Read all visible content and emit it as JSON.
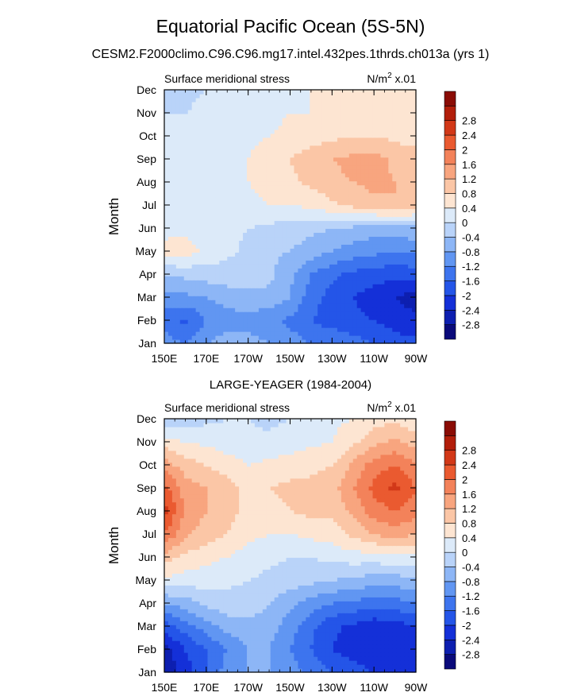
{
  "title": "Equatorial Pacific Ocean (5S-5N)",
  "subtitle": "CESM2.F2000climo.C96.C96.mg17.intel.432pes.1thrds.ch013a (yrs 1)",
  "colors": [
    "#0a0a7a",
    "#0d1fb0",
    "#1430d8",
    "#2455e8",
    "#3d74ee",
    "#6196f2",
    "#8db6f6",
    "#b9d3f9",
    "#dceaf9",
    "#fde5d2",
    "#fbc6a6",
    "#f8a57f",
    "#f3825a",
    "#ea5a30",
    "#d23818",
    "#b21e0a",
    "#8a0c05"
  ],
  "chart_data": [
    {
      "type": "heatmap",
      "panel_title": "",
      "left_label": "Surface meridional stress",
      "right_label_base": "N/m",
      "right_label_sup": "2",
      "right_label_tail": " x.01",
      "ylabel": "Month",
      "x_ticks": [
        "150E",
        "170E",
        "170W",
        "150W",
        "130W",
        "110W",
        "90W"
      ],
      "y_ticks": [
        "Jan",
        "Feb",
        "Mar",
        "Apr",
        "May",
        "Jun",
        "Jul",
        "Aug",
        "Sep",
        "Oct",
        "Nov",
        "Dec"
      ],
      "colorbar_labels": [
        "-2.8",
        "-2.4",
        "-2",
        "-1.6",
        "-1.2",
        "-0.8",
        "-0.4",
        "0",
        "0.4",
        "0.8",
        "1.2",
        "1.6",
        "2",
        "2.4",
        "2.8"
      ],
      "levels": [
        -2.8,
        -2.4,
        -2,
        -1.6,
        -1.2,
        -0.8,
        -0.4,
        0,
        0.4,
        0.8,
        1.2,
        1.6,
        2,
        2.4,
        2.8
      ],
      "lon_labels_deg": [
        150,
        170,
        190,
        210,
        230,
        250,
        270
      ],
      "values": [
        [
          -1.0,
          -1.2,
          -0.8,
          -0.6,
          -0.6,
          -0.8,
          -1.0,
          -1.2,
          -1.2,
          -1.4,
          -1.6,
          -1.8,
          -1.9
        ],
        [
          -1.4,
          -1.7,
          -1.2,
          -1.0,
          -1.0,
          -1.1,
          -1.3,
          -1.6,
          -1.8,
          -1.9,
          -2.0,
          -2.2,
          -2.3
        ],
        [
          -1.0,
          -0.9,
          -0.8,
          -0.6,
          -0.5,
          -0.5,
          -0.8,
          -1.4,
          -1.8,
          -2.0,
          -2.2,
          -2.4,
          -2.6
        ],
        [
          -0.3,
          -0.3,
          -0.2,
          -0.2,
          -0.2,
          -0.3,
          -0.7,
          -1.2,
          -1.5,
          -1.7,
          -1.8,
          -1.9,
          -1.8
        ],
        [
          0.5,
          0.6,
          0.3,
          0.1,
          -0.1,
          -0.3,
          -0.4,
          -0.6,
          -0.8,
          -1.0,
          -1.1,
          -1.2,
          -1.1
        ],
        [
          0.3,
          0.3,
          0.2,
          0.1,
          0.0,
          -0.1,
          -0.2,
          -0.3,
          -0.4,
          -0.5,
          -0.6,
          -0.6,
          -0.5
        ],
        [
          0.3,
          0.3,
          0.3,
          0.3,
          0.3,
          0.4,
          0.4,
          0.5,
          0.7,
          0.9,
          1.1,
          1.2,
          1.0
        ],
        [
          0.2,
          0.2,
          0.3,
          0.3,
          0.4,
          0.5,
          0.7,
          0.9,
          1.1,
          1.2,
          1.3,
          1.2,
          1.0
        ],
        [
          0.2,
          0.2,
          0.3,
          0.3,
          0.4,
          0.6,
          0.8,
          1.0,
          1.2,
          1.3,
          1.4,
          1.1,
          1.0
        ],
        [
          0.2,
          0.2,
          0.2,
          0.3,
          0.3,
          0.4,
          0.5,
          0.6,
          0.7,
          0.8,
          0.8,
          0.7,
          0.6
        ],
        [
          0.0,
          0.0,
          0.1,
          0.2,
          0.2,
          0.3,
          0.4,
          0.4,
          0.5,
          0.5,
          0.6,
          0.5,
          0.5
        ],
        [
          -0.1,
          -0.1,
          0.0,
          0.1,
          0.2,
          0.3,
          0.3,
          0.4,
          0.4,
          0.5,
          0.6,
          0.7,
          0.6
        ]
      ]
    },
    {
      "type": "heatmap",
      "panel_title": "LARGE-YEAGER (1984-2004)",
      "left_label": "Surface meridional stress",
      "right_label_base": "N/m",
      "right_label_sup": "2",
      "right_label_tail": " x.01",
      "ylabel": "Month",
      "x_ticks": [
        "150E",
        "170E",
        "170W",
        "150W",
        "130W",
        "110W",
        "90W"
      ],
      "y_ticks": [
        "Jan",
        "Feb",
        "Mar",
        "Apr",
        "May",
        "Jun",
        "Jul",
        "Aug",
        "Sep",
        "Oct",
        "Nov",
        "Dec"
      ],
      "colorbar_labels": [
        "-2.8",
        "-2.4",
        "-2",
        "-1.6",
        "-1.2",
        "-0.8",
        "-0.4",
        "0",
        "0.4",
        "0.8",
        "1.2",
        "1.6",
        "2",
        "2.4",
        "2.8"
      ],
      "levels": [
        -2.8,
        -2.4,
        -2,
        -1.6,
        -1.2,
        -0.8,
        -0.4,
        0,
        0.4,
        0.8,
        1.2,
        1.6,
        2,
        2.4,
        2.8
      ],
      "lon_labels_deg": [
        150,
        170,
        190,
        210,
        230,
        250,
        270
      ],
      "values": [
        [
          -2.8,
          -2.2,
          -1.6,
          -1.0,
          -0.8,
          -0.8,
          -1.0,
          -1.3,
          -1.6,
          -1.8,
          -2.0,
          -2.2,
          -2.0
        ],
        [
          -2.6,
          -2.0,
          -1.6,
          -1.2,
          -0.8,
          -0.8,
          -1.2,
          -1.6,
          -2.0,
          -2.2,
          -2.4,
          -2.4,
          -2.2
        ],
        [
          -1.8,
          -1.4,
          -1.0,
          -0.6,
          -0.5,
          -0.6,
          -1.0,
          -1.5,
          -1.9,
          -2.1,
          -2.3,
          -2.2,
          -2.0
        ],
        [
          -0.8,
          -0.6,
          -0.3,
          -0.2,
          -0.2,
          -0.4,
          -0.7,
          -1.0,
          -1.2,
          -1.3,
          -1.4,
          -1.4,
          -1.2
        ],
        [
          0.3,
          0.2,
          0.2,
          0.1,
          0.0,
          -0.1,
          -0.2,
          -0.3,
          -0.4,
          -0.5,
          -0.6,
          -0.6,
          -0.5
        ],
        [
          1.0,
          0.7,
          0.5,
          0.4,
          0.2,
          0.1,
          0.0,
          0.0,
          0.1,
          0.2,
          0.2,
          0.3,
          0.2
        ],
        [
          2.0,
          1.3,
          1.0,
          0.8,
          0.5,
          0.4,
          0.4,
          0.5,
          0.6,
          0.9,
          1.2,
          1.4,
          1.2
        ],
        [
          2.6,
          1.5,
          1.2,
          1.0,
          0.6,
          0.6,
          0.8,
          0.9,
          0.9,
          1.3,
          1.8,
          2.0,
          1.8
        ],
        [
          2.2,
          1.4,
          1.2,
          1.0,
          0.6,
          0.8,
          0.9,
          0.9,
          1.0,
          1.6,
          2.1,
          2.5,
          2.0
        ],
        [
          1.4,
          1.0,
          0.8,
          0.6,
          0.4,
          0.5,
          0.6,
          0.7,
          0.8,
          1.3,
          1.8,
          2.0,
          1.7
        ],
        [
          0.6,
          0.4,
          0.3,
          0.2,
          0.1,
          0.1,
          0.2,
          0.3,
          0.4,
          0.7,
          1.1,
          1.3,
          1.0
        ],
        [
          -0.4,
          -0.2,
          -0.1,
          0.0,
          0.0,
          -0.1,
          0.0,
          0.2,
          0.3,
          0.4,
          0.6,
          0.7,
          0.5
        ]
      ]
    }
  ]
}
